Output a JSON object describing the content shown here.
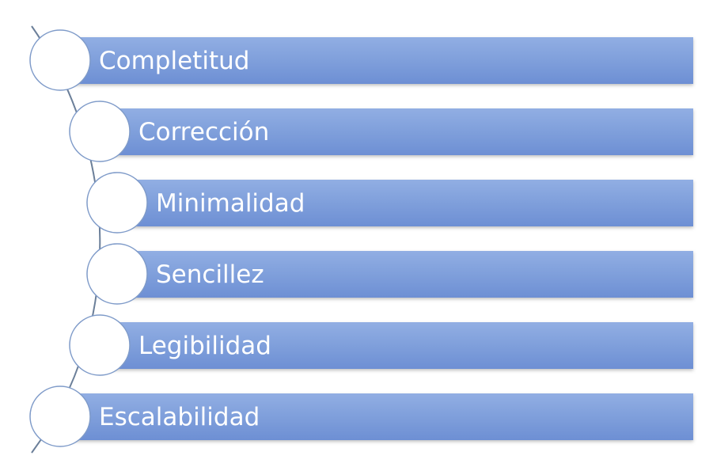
{
  "diagram": {
    "items": [
      {
        "label": "Completitud"
      },
      {
        "label": "Corrección"
      },
      {
        "label": "Minimalidad"
      },
      {
        "label": "Sencillez"
      },
      {
        "label": "Legibilidad"
      },
      {
        "label": "Escalabilidad"
      }
    ],
    "colors": {
      "bar_top": "#91aee3",
      "bar_bottom": "#6d8fd4",
      "bar_edge": "#9fb7e4",
      "circle_fill": "#ffffff",
      "circle_stroke": "#7f9bc9",
      "connector": "#6b7f99"
    }
  }
}
